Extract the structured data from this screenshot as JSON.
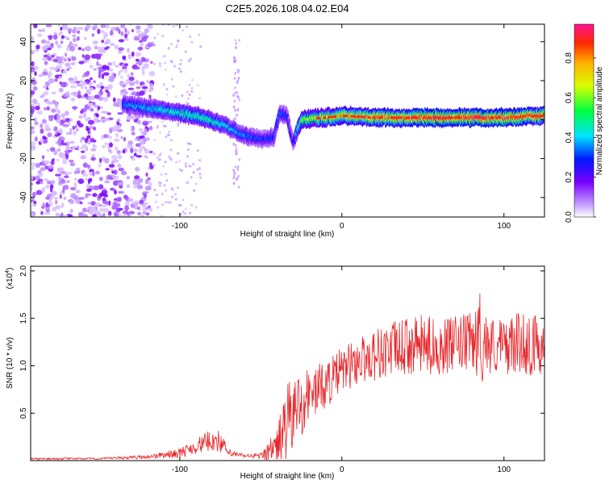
{
  "title": "C2E5.2026.108.04.02.E04",
  "chart_data": [
    {
      "type": "heatmap",
      "xlabel": "Height of straight line (km)",
      "ylabel": "Frequency (Hz)",
      "xlim": [
        -192,
        125
      ],
      "ylim": [
        -50,
        49
      ],
      "x_ticks": [
        -100,
        0,
        100
      ],
      "x_tick_labels": [
        "-100",
        "0",
        "100"
      ],
      "y_ticks": [
        -40,
        -20,
        0,
        20,
        40
      ],
      "y_tick_labels": [
        "-40",
        "-20",
        "0",
        "20",
        "40"
      ],
      "colorbar": {
        "label": "Normalized spectral amplitude",
        "range": [
          0,
          0.97
        ],
        "ticks": [
          0.0,
          0.2,
          0.4,
          0.6,
          0.8
        ],
        "tick_labels": [
          "0.0",
          "0.2",
          "0.4",
          "0.6",
          "0.8"
        ]
      },
      "ridge": {
        "description": "dominant frequency track",
        "x": [
          -135,
          -120,
          -105,
          -90,
          -75,
          -60,
          -50,
          -42,
          -38,
          -34,
          -30,
          -25,
          -10,
          0,
          20,
          40,
          60,
          80,
          100,
          125
        ],
        "y": [
          8,
          6,
          4,
          2,
          -2,
          -8,
          -10,
          -9,
          4,
          2,
          -12,
          0,
          1,
          2,
          1,
          1,
          1,
          1,
          1,
          2
        ],
        "amplitude": [
          0.35,
          0.4,
          0.45,
          0.5,
          0.45,
          0.35,
          0.3,
          0.3,
          0.35,
          0.3,
          0.25,
          0.6,
          0.7,
          0.75,
          0.8,
          0.85,
          0.9,
          0.9,
          0.9,
          0.8
        ]
      }
    },
    {
      "type": "line",
      "xlabel": "Height of straight line (km)",
      "ylabel": "SNR (10 * v/v)",
      "y_scale_label": "(x10",
      "y_scale_exponent": "4",
      "y_scale_suffix": ")",
      "xlim": [
        -192,
        125
      ],
      "ylim": [
        0,
        2.05
      ],
      "x_ticks": [
        -100,
        0,
        100
      ],
      "x_tick_labels": [
        "-100",
        "0",
        "100"
      ],
      "y_ticks": [
        0.5,
        1.0,
        1.5,
        2.0
      ],
      "y_tick_labels": [
        "0.5",
        "1.0",
        "1.5",
        "2.0"
      ],
      "series": [
        {
          "name": "SNR",
          "color": "#e8262a",
          "envelope_x": [
            -192,
            -150,
            -120,
            -100,
            -90,
            -80,
            -75,
            -70,
            -60,
            -50,
            -40,
            -35,
            -30,
            -25,
            -20,
            -10,
            0,
            10,
            20,
            30,
            40,
            50,
            60,
            70,
            80,
            85,
            90,
            100,
            110,
            120,
            125
          ],
          "envelope_mean": [
            0.02,
            0.02,
            0.04,
            0.08,
            0.15,
            0.22,
            0.2,
            0.08,
            0.05,
            0.05,
            0.15,
            0.35,
            0.5,
            0.6,
            0.7,
            0.8,
            0.95,
            1.05,
            1.12,
            1.17,
            1.2,
            1.22,
            1.2,
            1.22,
            1.25,
            1.3,
            1.22,
            1.2,
            1.25,
            1.2,
            1.25
          ],
          "envelope_amp": [
            0.01,
            0.01,
            0.02,
            0.05,
            0.08,
            0.12,
            0.12,
            0.04,
            0.02,
            0.03,
            0.2,
            0.4,
            0.45,
            0.35,
            0.3,
            0.25,
            0.25,
            0.25,
            0.28,
            0.3,
            0.3,
            0.32,
            0.3,
            0.3,
            0.32,
            0.5,
            0.32,
            0.3,
            0.32,
            0.35,
            0.3
          ]
        }
      ]
    }
  ]
}
